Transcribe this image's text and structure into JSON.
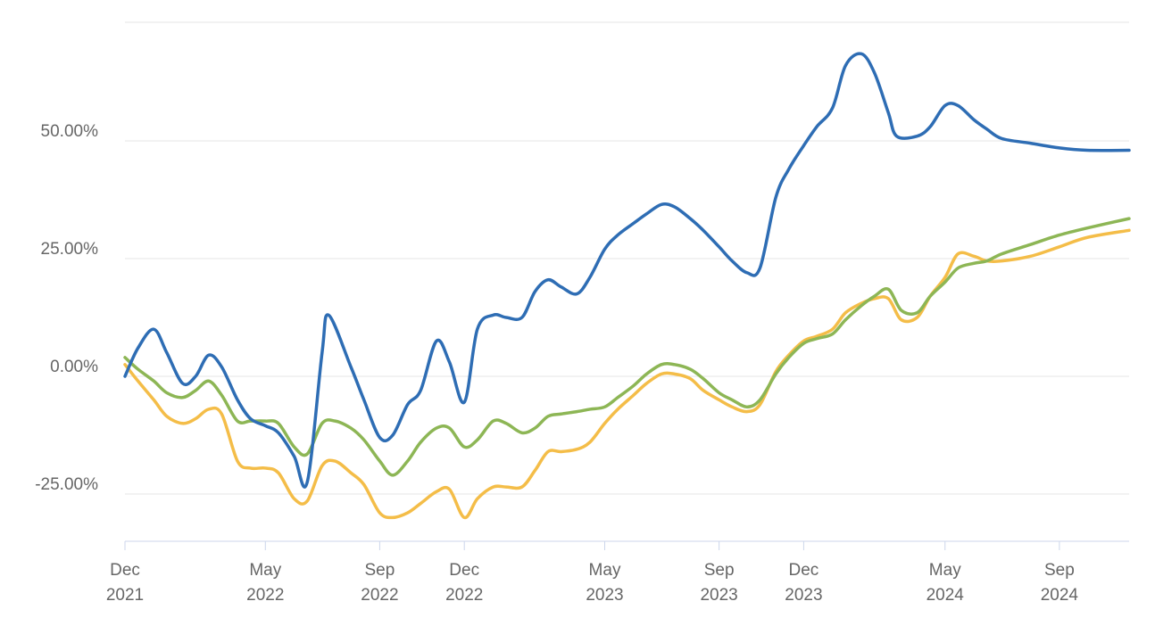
{
  "chart_data": {
    "type": "line",
    "title": "",
    "xlabel": "",
    "ylabel": "",
    "ylim": [
      -35,
      75
    ],
    "xlim": [
      "2021-12-01",
      "2024-11-15"
    ],
    "grid": true,
    "y_ticks": [
      {
        "value": -25,
        "label": "-25.00%"
      },
      {
        "value": 0,
        "label": "0.00%"
      },
      {
        "value": 25,
        "label": "25.00%"
      },
      {
        "value": 50,
        "label": "50.00%"
      }
    ],
    "x_ticks": [
      {
        "date": "2021-12-01",
        "line1": "Dec",
        "line2": "2021"
      },
      {
        "date": "2022-05-01",
        "line1": "May",
        "line2": "2022"
      },
      {
        "date": "2022-09-01",
        "line1": "Sep",
        "line2": "2022"
      },
      {
        "date": "2022-12-01",
        "line1": "Dec",
        "line2": "2022"
      },
      {
        "date": "2023-05-01",
        "line1": "May",
        "line2": "2023"
      },
      {
        "date": "2023-09-01",
        "line1": "Sep",
        "line2": "2023"
      },
      {
        "date": "2023-12-01",
        "line1": "Dec",
        "line2": "2023"
      },
      {
        "date": "2024-05-01",
        "line1": "May",
        "line2": "2024"
      },
      {
        "date": "2024-09-01",
        "line1": "Sep",
        "line2": "2024"
      }
    ],
    "series": [
      {
        "color": "#2e6db4",
        "points": [
          [
            "2021-12-01",
            0
          ],
          [
            "2021-12-15",
            6
          ],
          [
            "2022-01-01",
            10
          ],
          [
            "2022-01-15",
            5
          ],
          [
            "2022-02-01",
            -1.5
          ],
          [
            "2022-02-15",
            0
          ],
          [
            "2022-03-01",
            4.5
          ],
          [
            "2022-03-15",
            2
          ],
          [
            "2022-04-01",
            -5
          ],
          [
            "2022-04-15",
            -9
          ],
          [
            "2022-05-01",
            -10.5
          ],
          [
            "2022-05-15",
            -12
          ],
          [
            "2022-06-01",
            -17
          ],
          [
            "2022-06-15",
            -22.5
          ],
          [
            "2022-07-01",
            5
          ],
          [
            "2022-07-08",
            13
          ],
          [
            "2022-08-01",
            2
          ],
          [
            "2022-08-15",
            -5
          ],
          [
            "2022-09-01",
            -13
          ],
          [
            "2022-09-15",
            -12.5
          ],
          [
            "2022-10-01",
            -6
          ],
          [
            "2022-10-15",
            -3
          ],
          [
            "2022-11-01",
            7.5
          ],
          [
            "2022-11-15",
            3
          ],
          [
            "2022-12-01",
            -5.5
          ],
          [
            "2022-12-15",
            10
          ],
          [
            "2023-01-01",
            13
          ],
          [
            "2023-01-15",
            12.5
          ],
          [
            "2023-02-01",
            12.5
          ],
          [
            "2023-02-15",
            18
          ],
          [
            "2023-03-01",
            20.5
          ],
          [
            "2023-03-15",
            19
          ],
          [
            "2023-04-01",
            17.5
          ],
          [
            "2023-04-15",
            21
          ],
          [
            "2023-05-01",
            27
          ],
          [
            "2023-05-15",
            30
          ],
          [
            "2023-06-01",
            32.5
          ],
          [
            "2023-06-15",
            34.5
          ],
          [
            "2023-07-01",
            36.5
          ],
          [
            "2023-07-15",
            36
          ],
          [
            "2023-08-01",
            33.5
          ],
          [
            "2023-08-15",
            31
          ],
          [
            "2023-09-01",
            27.5
          ],
          [
            "2023-09-15",
            24.5
          ],
          [
            "2023-10-01",
            22
          ],
          [
            "2023-10-15",
            23
          ],
          [
            "2023-11-01",
            38
          ],
          [
            "2023-11-15",
            44
          ],
          [
            "2023-12-01",
            49
          ],
          [
            "2023-12-15",
            53
          ],
          [
            "2024-01-01",
            57
          ],
          [
            "2024-01-15",
            66
          ],
          [
            "2024-02-01",
            68.5
          ],
          [
            "2024-02-15",
            64.5
          ],
          [
            "2024-03-01",
            56
          ],
          [
            "2024-03-10",
            51
          ],
          [
            "2024-04-01",
            51
          ],
          [
            "2024-04-15",
            53
          ],
          [
            "2024-05-01",
            57.5
          ],
          [
            "2024-05-15",
            57.5
          ],
          [
            "2024-06-01",
            54.5
          ],
          [
            "2024-06-15",
            52.5
          ],
          [
            "2024-07-01",
            50.5
          ],
          [
            "2024-08-01",
            49.5
          ],
          [
            "2024-09-01",
            48.5
          ],
          [
            "2024-10-01",
            48
          ],
          [
            "2024-11-15",
            48
          ]
        ]
      },
      {
        "color": "#8db655",
        "points": [
          [
            "2021-12-01",
            4
          ],
          [
            "2021-12-15",
            1.5
          ],
          [
            "2022-01-01",
            -1
          ],
          [
            "2022-01-15",
            -3.5
          ],
          [
            "2022-02-01",
            -4.5
          ],
          [
            "2022-02-15",
            -3
          ],
          [
            "2022-03-01",
            -1
          ],
          [
            "2022-03-15",
            -4
          ],
          [
            "2022-04-01",
            -9.5
          ],
          [
            "2022-04-15",
            -9.5
          ],
          [
            "2022-05-01",
            -9.5
          ],
          [
            "2022-05-15",
            -10
          ],
          [
            "2022-06-01",
            -15
          ],
          [
            "2022-06-15",
            -16.5
          ],
          [
            "2022-07-01",
            -10
          ],
          [
            "2022-07-15",
            -9.5
          ],
          [
            "2022-08-01",
            -11
          ],
          [
            "2022-08-15",
            -13.5
          ],
          [
            "2022-09-01",
            -18
          ],
          [
            "2022-09-15",
            -21
          ],
          [
            "2022-10-01",
            -18
          ],
          [
            "2022-10-15",
            -14
          ],
          [
            "2022-11-01",
            -11
          ],
          [
            "2022-11-15",
            -11
          ],
          [
            "2022-12-01",
            -15
          ],
          [
            "2022-12-15",
            -13.5
          ],
          [
            "2023-01-01",
            -9.5
          ],
          [
            "2023-01-15",
            -10
          ],
          [
            "2023-02-01",
            -12
          ],
          [
            "2023-02-15",
            -11
          ],
          [
            "2023-03-01",
            -8.5
          ],
          [
            "2023-03-15",
            -8
          ],
          [
            "2023-04-01",
            -7.5
          ],
          [
            "2023-04-15",
            -7
          ],
          [
            "2023-05-01",
            -6.5
          ],
          [
            "2023-05-15",
            -4.5
          ],
          [
            "2023-06-01",
            -2
          ],
          [
            "2023-06-15",
            0.5
          ],
          [
            "2023-07-01",
            2.5
          ],
          [
            "2023-07-15",
            2.5
          ],
          [
            "2023-08-01",
            1.5
          ],
          [
            "2023-08-15",
            -0.5
          ],
          [
            "2023-09-01",
            -3.5
          ],
          [
            "2023-09-15",
            -5
          ],
          [
            "2023-10-01",
            -6.5
          ],
          [
            "2023-10-15",
            -5
          ],
          [
            "2023-11-01",
            0.5
          ],
          [
            "2023-11-15",
            4
          ],
          [
            "2023-12-01",
            7
          ],
          [
            "2023-12-15",
            8
          ],
          [
            "2024-01-01",
            9
          ],
          [
            "2024-01-15",
            12
          ],
          [
            "2024-02-01",
            15
          ],
          [
            "2024-02-15",
            17
          ],
          [
            "2024-03-01",
            18.5
          ],
          [
            "2024-03-15",
            14
          ],
          [
            "2024-04-01",
            13.5
          ],
          [
            "2024-04-15",
            17
          ],
          [
            "2024-05-01",
            20
          ],
          [
            "2024-05-15",
            23
          ],
          [
            "2024-06-01",
            24
          ],
          [
            "2024-06-15",
            24.5
          ],
          [
            "2024-07-01",
            26
          ],
          [
            "2024-08-01",
            28
          ],
          [
            "2024-09-01",
            30
          ],
          [
            "2024-10-01",
            31.5
          ],
          [
            "2024-11-15",
            33.5
          ]
        ]
      },
      {
        "color": "#f4bd48",
        "points": [
          [
            "2021-12-01",
            2.5
          ],
          [
            "2021-12-15",
            -1
          ],
          [
            "2022-01-01",
            -5
          ],
          [
            "2022-01-15",
            -8.5
          ],
          [
            "2022-02-01",
            -10
          ],
          [
            "2022-02-15",
            -9
          ],
          [
            "2022-03-01",
            -7
          ],
          [
            "2022-03-15",
            -8
          ],
          [
            "2022-04-01",
            -18
          ],
          [
            "2022-04-15",
            -19.5
          ],
          [
            "2022-05-01",
            -19.5
          ],
          [
            "2022-05-15",
            -20.5
          ],
          [
            "2022-06-01",
            -26
          ],
          [
            "2022-06-15",
            -26.5
          ],
          [
            "2022-07-01",
            -19
          ],
          [
            "2022-07-15",
            -18
          ],
          [
            "2022-08-01",
            -20.5
          ],
          [
            "2022-08-15",
            -23
          ],
          [
            "2022-09-01",
            -29
          ],
          [
            "2022-09-15",
            -30
          ],
          [
            "2022-10-01",
            -29
          ],
          [
            "2022-10-15",
            -27
          ],
          [
            "2022-11-01",
            -24.5
          ],
          [
            "2022-11-15",
            -24
          ],
          [
            "2022-12-01",
            -30
          ],
          [
            "2022-12-15",
            -26
          ],
          [
            "2023-01-01",
            -23.5
          ],
          [
            "2023-01-15",
            -23.5
          ],
          [
            "2023-02-01",
            -23.5
          ],
          [
            "2023-02-15",
            -20
          ],
          [
            "2023-03-01",
            -16
          ],
          [
            "2023-03-15",
            -16
          ],
          [
            "2023-04-01",
            -15.5
          ],
          [
            "2023-04-15",
            -14
          ],
          [
            "2023-05-01",
            -10
          ],
          [
            "2023-05-15",
            -7
          ],
          [
            "2023-06-01",
            -4
          ],
          [
            "2023-06-15",
            -1.5
          ],
          [
            "2023-07-01",
            0.5
          ],
          [
            "2023-07-15",
            0.5
          ],
          [
            "2023-08-01",
            -0.5
          ],
          [
            "2023-08-15",
            -3
          ],
          [
            "2023-09-01",
            -5
          ],
          [
            "2023-09-15",
            -6.5
          ],
          [
            "2023-10-01",
            -7.5
          ],
          [
            "2023-10-15",
            -6
          ],
          [
            "2023-11-01",
            1
          ],
          [
            "2023-11-15",
            4.5
          ],
          [
            "2023-12-01",
            7.5
          ],
          [
            "2023-12-15",
            8.5
          ],
          [
            "2024-01-01",
            10
          ],
          [
            "2024-01-15",
            13.5
          ],
          [
            "2024-02-01",
            15.5
          ],
          [
            "2024-02-15",
            16.5
          ],
          [
            "2024-03-01",
            16.5
          ],
          [
            "2024-03-15",
            12
          ],
          [
            "2024-04-01",
            12.5
          ],
          [
            "2024-04-15",
            17
          ],
          [
            "2024-05-01",
            21
          ],
          [
            "2024-05-15",
            26
          ],
          [
            "2024-06-01",
            25.5
          ],
          [
            "2024-06-15",
            24.5
          ],
          [
            "2024-07-01",
            24.5
          ],
          [
            "2024-08-01",
            25.5
          ],
          [
            "2024-09-01",
            27.5
          ],
          [
            "2024-10-01",
            29.5
          ],
          [
            "2024-11-15",
            31
          ]
        ]
      }
    ]
  }
}
